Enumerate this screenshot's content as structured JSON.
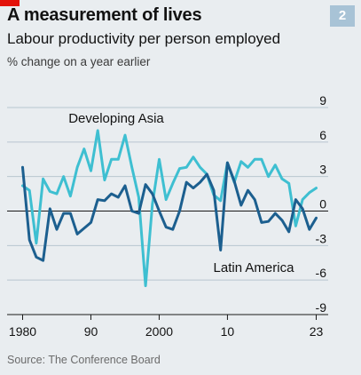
{
  "header": {
    "chart_number": "2",
    "title": "A measurement of lives",
    "subtitle": "Labour productivity per person employed",
    "unit": "% change on a year earlier"
  },
  "footer": {
    "source": "Source: The Conference Board"
  },
  "colors": {
    "developing_asia": "#3ebfd1",
    "latin_america": "#1c5f8f",
    "accent": "#e3120b"
  },
  "chart_data": {
    "type": "line",
    "x": [
      1980,
      1981,
      1982,
      1983,
      1984,
      1985,
      1986,
      1987,
      1988,
      1989,
      1990,
      1991,
      1992,
      1993,
      1994,
      1995,
      1996,
      1997,
      1998,
      1999,
      2000,
      2001,
      2002,
      2003,
      2004,
      2005,
      2006,
      2007,
      2008,
      2009,
      2010,
      2011,
      2012,
      2013,
      2014,
      2015,
      2016,
      2017,
      2018,
      2019,
      2020,
      2021,
      2022,
      2023
    ],
    "xticks": [
      1980,
      1990,
      2000,
      2010,
      2023
    ],
    "xtick_labels": [
      "1980",
      "90",
      "2000",
      "10",
      "23"
    ],
    "ylim": [
      -9,
      9
    ],
    "yticks": [
      9,
      6,
      3,
      0,
      -3,
      -6,
      -9
    ],
    "ytick_labels": [
      "9",
      "6",
      "3",
      "0",
      "-3",
      "-6",
      "-9"
    ],
    "series": [
      {
        "name": "Developing Asia",
        "color_key": "developing_asia",
        "values": [
          2.2,
          1.8,
          -2.8,
          2.8,
          1.7,
          1.5,
          3.0,
          1.3,
          3.8,
          5.4,
          3.5,
          7.0,
          2.7,
          4.5,
          4.5,
          6.6,
          3.8,
          1.2,
          -6.5,
          0.6,
          4.5,
          1.0,
          2.4,
          3.7,
          3.8,
          4.7,
          3.8,
          3.2,
          1.4,
          0.9,
          4.2,
          2.5,
          4.3,
          3.8,
          4.5,
          4.5,
          3.0,
          4.0,
          2.8,
          2.4,
          -1.3,
          1.0,
          1.6,
          2.0
        ]
      },
      {
        "name": "Latin America",
        "color_key": "latin_america",
        "values": [
          3.8,
          -2.5,
          -4.0,
          -4.3,
          0.2,
          -1.6,
          -0.2,
          -0.2,
          -2.0,
          -1.5,
          -1.0,
          1.0,
          0.9,
          1.5,
          1.2,
          2.2,
          0.0,
          -0.2,
          2.3,
          1.5,
          0.0,
          -1.4,
          -1.6,
          0.0,
          2.5,
          2.0,
          2.5,
          3.2,
          1.8,
          -3.4,
          4.2,
          2.6,
          0.5,
          1.8,
          1.0,
          -1.0,
          -0.9,
          -0.2,
          -0.8,
          -1.8,
          1.0,
          0.2,
          -1.6,
          -0.6
        ]
      }
    ],
    "annotations": [
      {
        "text": "Developing Asia",
        "series": "Developing Asia"
      },
      {
        "text": "Latin America",
        "series": "Latin America"
      }
    ],
    "grid": true,
    "legend": "none"
  }
}
